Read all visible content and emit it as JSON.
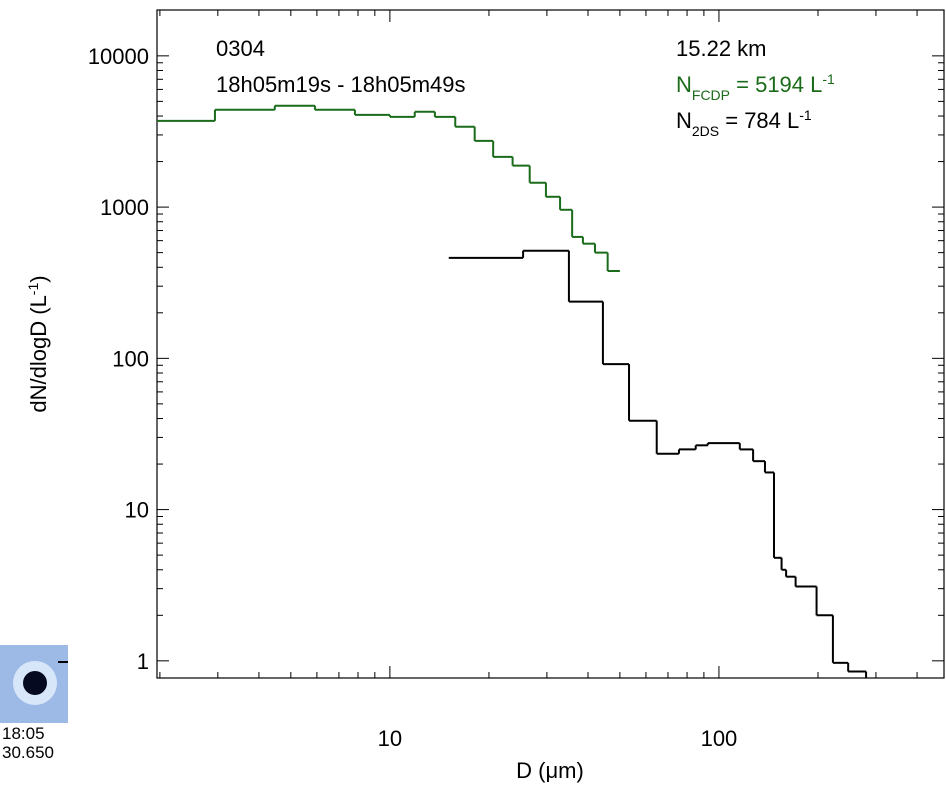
{
  "chart_data": {
    "type": "step",
    "xlabel": "D (μm)",
    "ylabel": {
      "main": "dN/dlogD (L",
      "sup": "-1",
      "end": ")"
    },
    "annotations": {
      "id": "0304",
      "time": "18h05m19s - 18h05m49s",
      "altitude": "15.22 km",
      "n_fcdp": {
        "main": "N",
        "sub": "FCDP",
        "rest": " =  5194 L",
        "sup": "-1",
        "color": "#1a6b1a"
      },
      "n_2ds": {
        "main": "N",
        "sub": "2DS",
        "rest": " =   784 L",
        "sup": "-1",
        "color": "#000000"
      }
    },
    "inset": {
      "time": "18:05",
      "stamp": "30.650"
    },
    "xlog": true,
    "ylog": true,
    "xlim": [
      1.96,
      483
    ],
    "ylim": [
      0.77,
      20100
    ],
    "xticks": [
      10,
      100
    ],
    "yticks": [
      1,
      10,
      100,
      1000,
      10000
    ],
    "xminor": [
      2,
      3,
      4,
      5,
      6,
      7,
      8,
      9,
      20,
      30,
      40,
      50,
      60,
      70,
      80,
      90,
      200,
      300,
      400
    ],
    "yminor": [
      2,
      3,
      4,
      5,
      6,
      7,
      8,
      9,
      20,
      30,
      40,
      50,
      60,
      70,
      80,
      90,
      200,
      300,
      400,
      500,
      600,
      700,
      800,
      900,
      2000,
      3000,
      4000,
      5000,
      6000,
      7000,
      8000,
      9000
    ],
    "series": [
      {
        "color": "#1a6b1a",
        "edges": [
          1.96,
          2.94,
          4.47,
          5.92,
          7.83,
          10,
          11.9,
          13.7,
          15.8,
          18.1,
          20.6,
          23.6,
          26.6,
          29.8,
          32.9,
          35.8,
          38.6,
          42.0,
          45.9,
          50.0
        ],
        "values": [
          3715,
          4400,
          4680,
          4400,
          4070,
          3950,
          4270,
          3950,
          3400,
          2740,
          2150,
          1880,
          1450,
          1170,
          960,
          635,
          573,
          500,
          378
        ]
      },
      {
        "color": "#000000",
        "edges": [
          15.1,
          25.4,
          35.0,
          44.4,
          53.3,
          64.7,
          75.6,
          85.0,
          92.5,
          115.7,
          127,
          138,
          147,
          155,
          160,
          171,
          198,
          222,
          247,
          280,
          306
        ],
        "values": [
          462,
          515,
          237,
          91.5,
          38.7,
          23.4,
          25.0,
          26.6,
          27.5,
          25.0,
          20.9,
          17.6,
          4.8,
          4.0,
          3.6,
          3.1,
          2.0,
          0.97,
          0.85,
          0.6
        ]
      }
    ]
  }
}
